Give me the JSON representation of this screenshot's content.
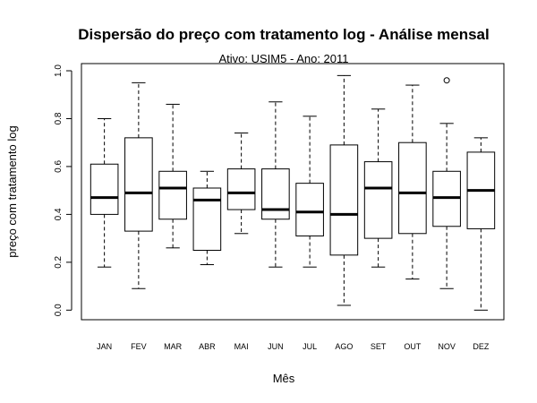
{
  "chart_data": {
    "type": "boxplot",
    "title": "Dispersão do  preço com tratamento log  - Análise mensal",
    "subtitle": "Ativo: USIM5 - Ano: 2011",
    "xlabel": "Mês",
    "ylabel": "preço com tratamento log",
    "ylim": [
      -0.04,
      1.03
    ],
    "yticks": [
      "0.0",
      "0.2",
      "0.4",
      "0.6",
      "0.8",
      "1.0"
    ],
    "grid": false,
    "categories": [
      "JAN",
      "FEV",
      "MAR",
      "ABR",
      "MAI",
      "JUN",
      "JUL",
      "AGO",
      "SET",
      "OUT",
      "NOV",
      "DEZ"
    ],
    "boxes": [
      {
        "min": 0.18,
        "q1": 0.4,
        "median": 0.47,
        "q3": 0.61,
        "max": 0.8,
        "outliers": []
      },
      {
        "min": 0.09,
        "q1": 0.33,
        "median": 0.49,
        "q3": 0.72,
        "max": 0.95,
        "outliers": []
      },
      {
        "min": 0.26,
        "q1": 0.38,
        "median": 0.51,
        "q3": 0.58,
        "max": 0.86,
        "outliers": []
      },
      {
        "min": 0.19,
        "q1": 0.25,
        "median": 0.46,
        "q3": 0.51,
        "max": 0.58,
        "outliers": []
      },
      {
        "min": 0.32,
        "q1": 0.42,
        "median": 0.49,
        "q3": 0.59,
        "max": 0.74,
        "outliers": []
      },
      {
        "min": 0.18,
        "q1": 0.38,
        "median": 0.42,
        "q3": 0.59,
        "max": 0.87,
        "outliers": []
      },
      {
        "min": 0.18,
        "q1": 0.31,
        "median": 0.41,
        "q3": 0.53,
        "max": 0.81,
        "outliers": []
      },
      {
        "min": 0.02,
        "q1": 0.23,
        "median": 0.4,
        "q3": 0.69,
        "max": 0.98,
        "outliers": []
      },
      {
        "min": 0.18,
        "q1": 0.3,
        "median": 0.51,
        "q3": 0.62,
        "max": 0.84,
        "outliers": []
      },
      {
        "min": 0.13,
        "q1": 0.32,
        "median": 0.49,
        "q3": 0.7,
        "max": 0.94,
        "outliers": []
      },
      {
        "min": 0.09,
        "q1": 0.35,
        "median": 0.47,
        "q3": 0.58,
        "max": 0.78,
        "outliers": [
          0.96
        ]
      },
      {
        "min": 0.0,
        "q1": 0.34,
        "median": 0.5,
        "q3": 0.66,
        "max": 0.72,
        "outliers": []
      }
    ]
  }
}
